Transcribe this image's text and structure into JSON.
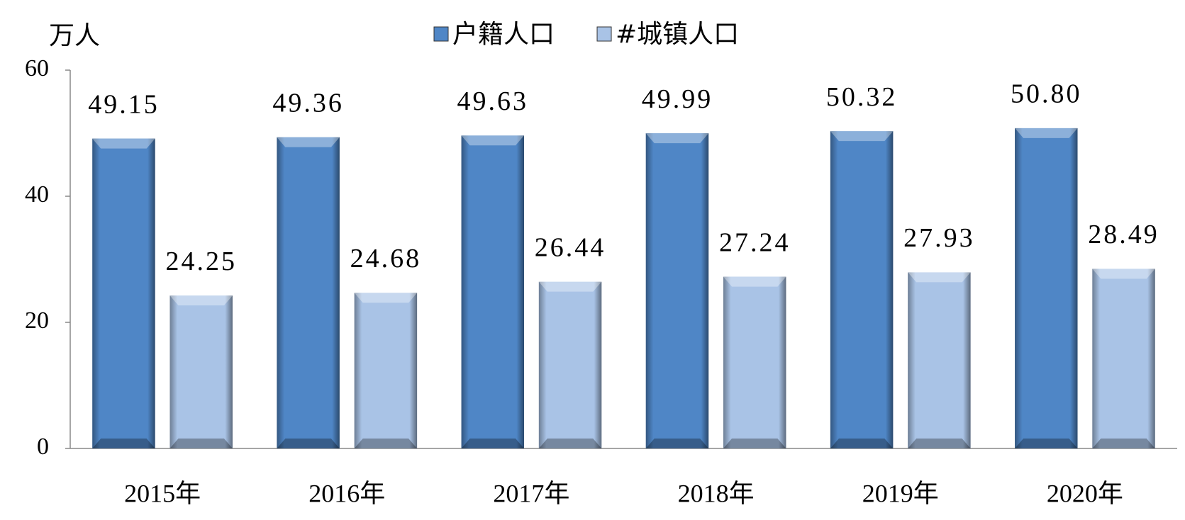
{
  "chart_data": {
    "type": "bar",
    "y_label": "万人",
    "categories": [
      "2015年",
      "2016年",
      "2017年",
      "2018年",
      "2019年",
      "2020年"
    ],
    "series": [
      {
        "name": "户籍人口",
        "color": "#4f86c6",
        "values": [
          49.15,
          49.36,
          49.63,
          49.99,
          50.32,
          50.8
        ],
        "value_labels": [
          "49.15",
          "49.36",
          "49.63",
          "49.99",
          "50.32",
          "50.80"
        ]
      },
      {
        "name": "#城镇人口",
        "color": "#a9c3e6",
        "values": [
          24.25,
          24.68,
          26.44,
          27.24,
          27.93,
          28.49
        ],
        "value_labels": [
          "24.25",
          "24.68",
          "26.44",
          "27.24",
          "27.93",
          "28.49"
        ]
      }
    ],
    "ylim": [
      0,
      60
    ],
    "yticks": [
      0,
      20,
      40,
      60
    ],
    "grid": false
  }
}
